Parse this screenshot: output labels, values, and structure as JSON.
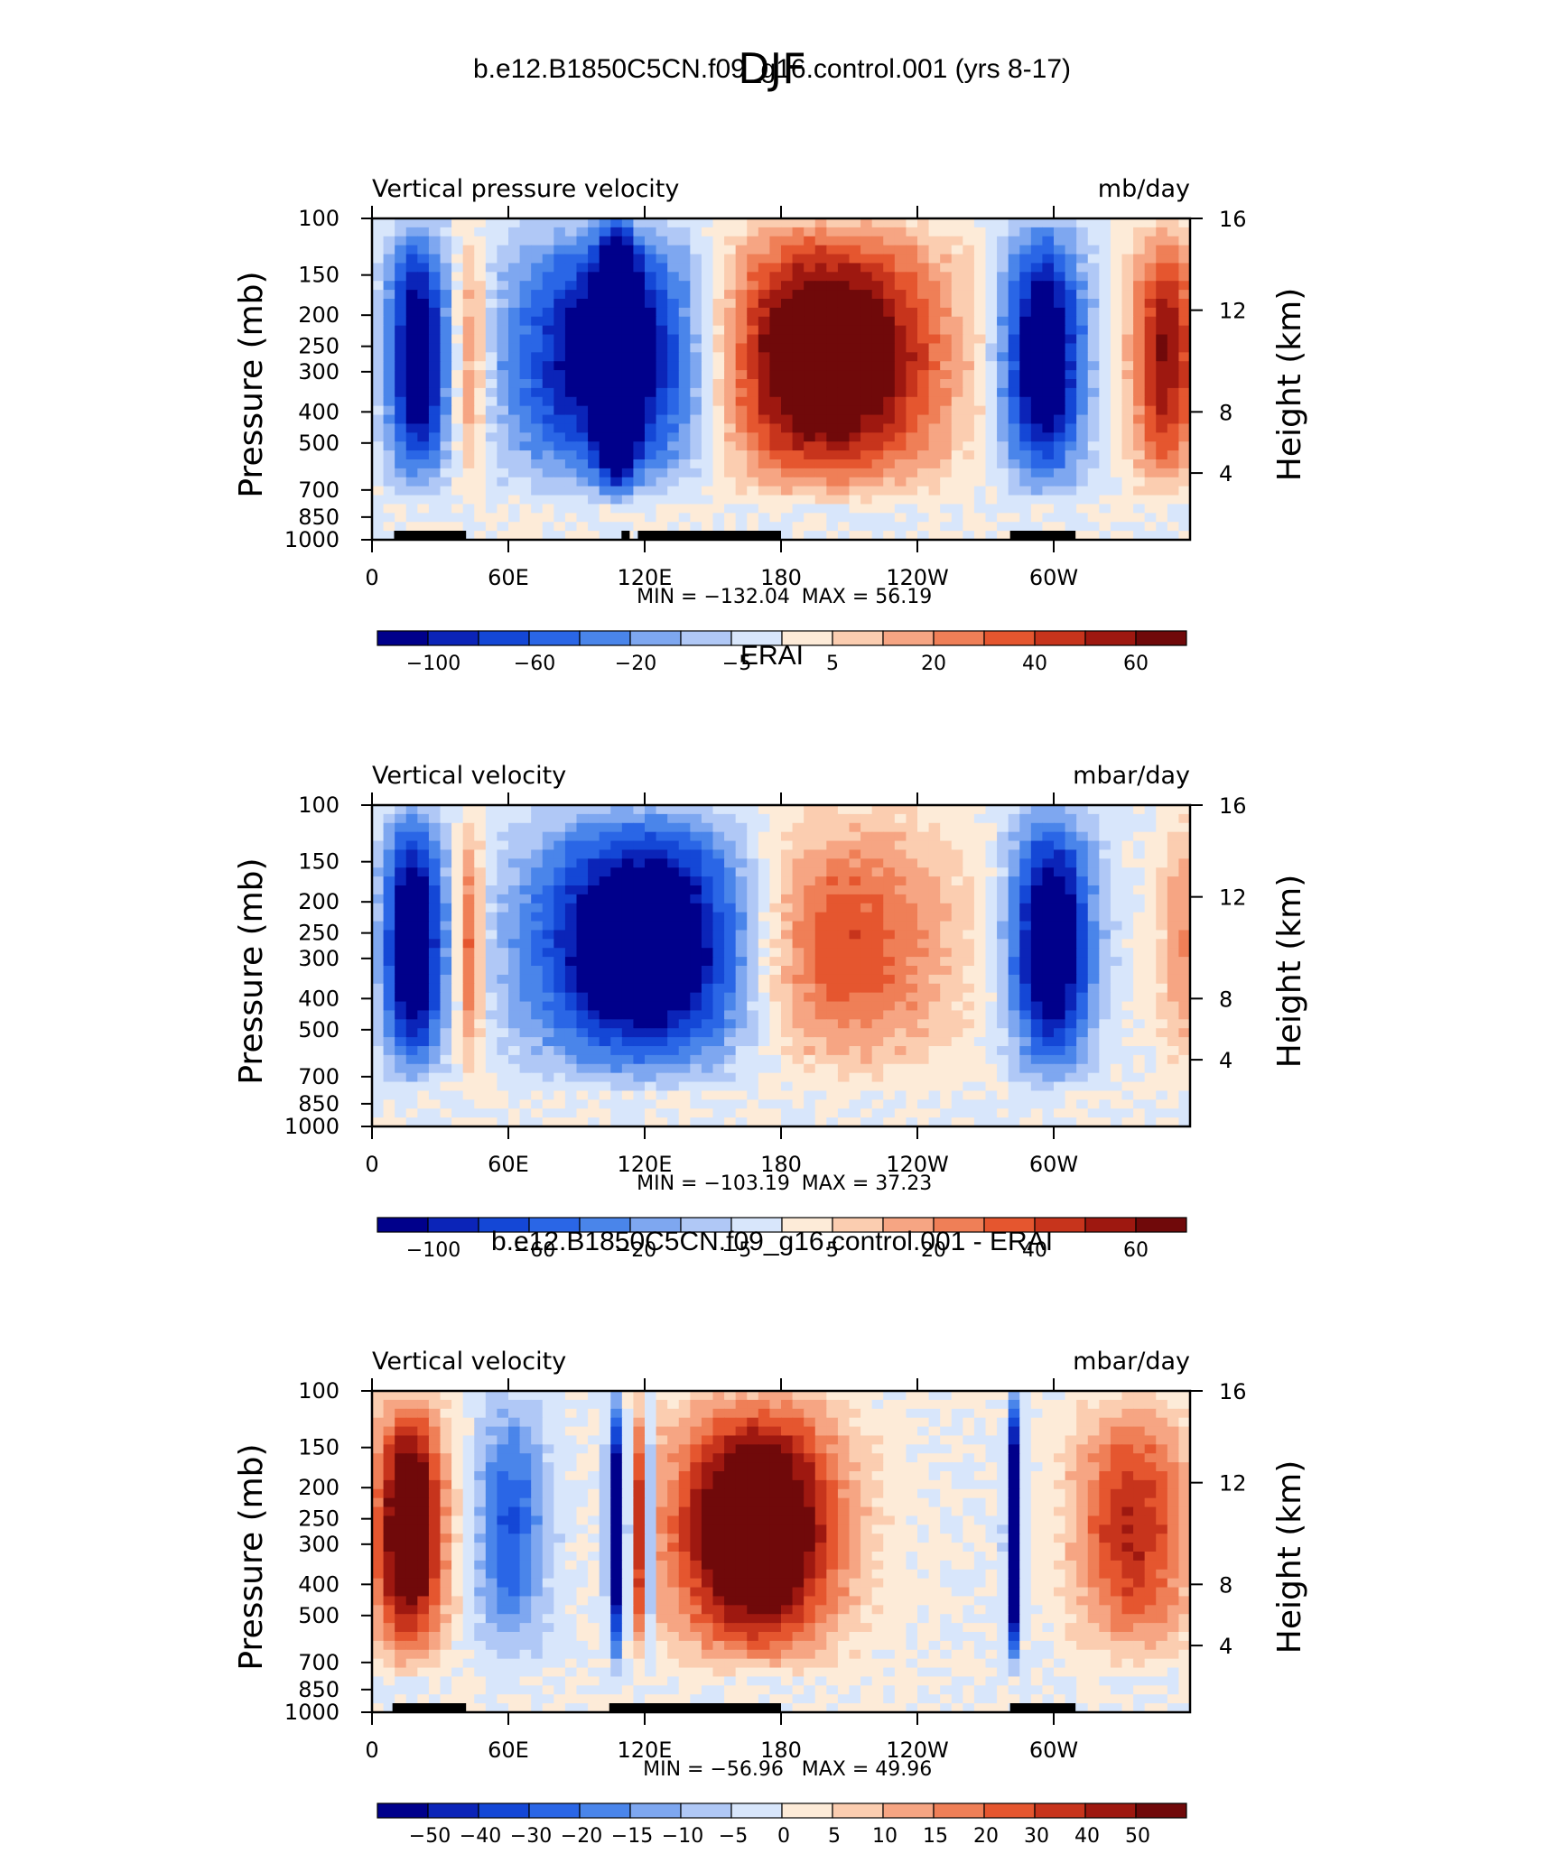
{
  "page_title": "DJF",
  "chart_data": [
    {
      "type": "heatmap",
      "title": "b.e12.B1850C5CN.f09_g16.control.001 (yrs 8-17)",
      "variable_label": "Vertical pressure velocity",
      "units_label": "mb/day",
      "ylabel": "Pressure (mb)",
      "y2label": "Height (km)",
      "x_ticks": [
        "0",
        "60E",
        "120E",
        "180",
        "120W",
        "60W"
      ],
      "y_ticks": [
        "100",
        "150",
        "200",
        "250",
        "300",
        "400",
        "500",
        "700",
        "850",
        "1000"
      ],
      "y2_ticks": [
        "16",
        "12",
        "8",
        "4"
      ],
      "min_label": "MIN = −132.04",
      "max_label": "MAX =   56.19",
      "colorbar_labels": [
        "−100",
        "−60",
        "−20",
        "−5",
        "5",
        "20",
        "40",
        "60"
      ],
      "colors": [
        "#00008b",
        "#0b24b8",
        "#1447d6",
        "#2a66e6",
        "#4a85ea",
        "#7ea7f0",
        "#b0c8f6",
        "#d8e6fb",
        "#fdebd8",
        "#fbcdb0",
        "#f6a583",
        "#ef7f57",
        "#e5562f",
        "#c7341c",
        "#9e1810",
        "#70090a"
      ]
    },
    {
      "type": "heatmap",
      "title": "ERAI",
      "variable_label": "Vertical velocity",
      "units_label": "mbar/day",
      "ylabel": "Pressure (mb)",
      "y2label": "Height (km)",
      "x_ticks": [
        "0",
        "60E",
        "120E",
        "180",
        "120W",
        "60W"
      ],
      "y_ticks": [
        "100",
        "150",
        "200",
        "250",
        "300",
        "400",
        "500",
        "700",
        "850",
        "1000"
      ],
      "y2_ticks": [
        "16",
        "12",
        "8",
        "4"
      ],
      "min_label": "MIN = −103.19",
      "max_label": "MAX =   37.23",
      "colorbar_labels": [
        "−100",
        "−60",
        "−20",
        "−5",
        "5",
        "20",
        "40",
        "60"
      ]
    },
    {
      "type": "heatmap",
      "title": "b.e12.B1850C5CN.f09_g16.control.001 - ERAI",
      "variable_label": "Vertical velocity",
      "units_label": "mbar/day",
      "ylabel": "Pressure (mb)",
      "y2label": "Height (km)",
      "x_ticks": [
        "0",
        "60E",
        "120E",
        "180",
        "120W",
        "60W"
      ],
      "y_ticks": [
        "100",
        "150",
        "200",
        "250",
        "300",
        "400",
        "500",
        "700",
        "850",
        "1000"
      ],
      "y2_ticks": [
        "16",
        "12",
        "8",
        "4"
      ],
      "min_label": "MIN = −56.96",
      "max_label": "MAX =   49.96",
      "colorbar_labels": [
        "−50",
        "−40",
        "−30",
        "−20",
        "−15",
        "−10",
        "−5",
        "0",
        "5",
        "10",
        "15",
        "20",
        "30",
        "40",
        "50"
      ]
    }
  ]
}
